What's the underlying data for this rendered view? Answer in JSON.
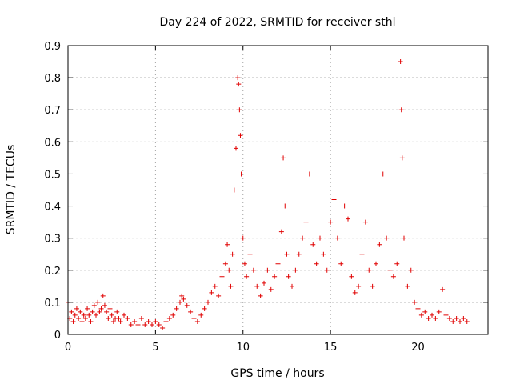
{
  "chart_data": {
    "type": "scatter",
    "title": "Day 224 of 2022, SRMTID for receiver sthl",
    "xlabel": "GPS time / hours",
    "ylabel": "SRMTID / TECUs",
    "xlim": [
      0,
      24
    ],
    "ylim": [
      0,
      0.9
    ],
    "xticks": [
      0,
      5,
      10,
      15,
      20
    ],
    "xtick_labels": [
      "0",
      "5",
      "10",
      "15",
      "20"
    ],
    "yticks": [
      0,
      0.1,
      0.2,
      0.3,
      0.4,
      0.5,
      0.6,
      0.7,
      0.8,
      0.9
    ],
    "ytick_labels": [
      "0",
      "0.1",
      "0.2",
      "0.3",
      "0.4",
      "0.5",
      "0.6",
      "0.7",
      "0.8",
      "0.9"
    ],
    "grid": true,
    "marker": "plus",
    "series": [
      {
        "name": "SRMTID",
        "color": "#e00000",
        "points": [
          [
            0.0,
            0.1
          ],
          [
            0.1,
            0.05
          ],
          [
            0.2,
            0.07
          ],
          [
            0.3,
            0.04
          ],
          [
            0.4,
            0.06
          ],
          [
            0.5,
            0.08
          ],
          [
            0.6,
            0.05
          ],
          [
            0.7,
            0.07
          ],
          [
            0.8,
            0.04
          ],
          [
            0.9,
            0.06
          ],
          [
            1.0,
            0.05
          ],
          [
            1.1,
            0.08
          ],
          [
            1.2,
            0.06
          ],
          [
            1.3,
            0.04
          ],
          [
            1.4,
            0.07
          ],
          [
            1.5,
            0.09
          ],
          [
            1.6,
            0.06
          ],
          [
            1.7,
            0.1
          ],
          [
            1.8,
            0.07
          ],
          [
            1.9,
            0.08
          ],
          [
            2.0,
            0.12
          ],
          [
            2.1,
            0.09
          ],
          [
            2.2,
            0.07
          ],
          [
            2.3,
            0.05
          ],
          [
            2.4,
            0.08
          ],
          [
            2.5,
            0.06
          ],
          [
            2.6,
            0.04
          ],
          [
            2.7,
            0.05
          ],
          [
            2.8,
            0.07
          ],
          [
            2.9,
            0.05
          ],
          [
            3.0,
            0.04
          ],
          [
            3.2,
            0.06
          ],
          [
            3.4,
            0.05
          ],
          [
            3.6,
            0.03
          ],
          [
            3.8,
            0.04
          ],
          [
            4.0,
            0.03
          ],
          [
            4.2,
            0.05
          ],
          [
            4.4,
            0.03
          ],
          [
            4.6,
            0.04
          ],
          [
            4.8,
            0.03
          ],
          [
            5.0,
            0.04
          ],
          [
            5.2,
            0.03
          ],
          [
            5.4,
            0.02
          ],
          [
            5.6,
            0.04
          ],
          [
            5.8,
            0.05
          ],
          [
            6.0,
            0.06
          ],
          [
            6.2,
            0.08
          ],
          [
            6.4,
            0.1
          ],
          [
            6.5,
            0.12
          ],
          [
            6.6,
            0.11
          ],
          [
            6.8,
            0.09
          ],
          [
            7.0,
            0.07
          ],
          [
            7.2,
            0.05
          ],
          [
            7.4,
            0.04
          ],
          [
            7.6,
            0.06
          ],
          [
            7.8,
            0.08
          ],
          [
            8.0,
            0.1
          ],
          [
            8.2,
            0.13
          ],
          [
            8.4,
            0.15
          ],
          [
            8.6,
            0.12
          ],
          [
            8.8,
            0.18
          ],
          [
            9.0,
            0.22
          ],
          [
            9.1,
            0.28
          ],
          [
            9.2,
            0.2
          ],
          [
            9.3,
            0.15
          ],
          [
            9.4,
            0.25
          ],
          [
            9.5,
            0.45
          ],
          [
            9.6,
            0.58
          ],
          [
            9.7,
            0.8
          ],
          [
            9.75,
            0.78
          ],
          [
            9.8,
            0.7
          ],
          [
            9.85,
            0.62
          ],
          [
            9.9,
            0.5
          ],
          [
            10.0,
            0.3
          ],
          [
            10.1,
            0.22
          ],
          [
            10.2,
            0.18
          ],
          [
            10.4,
            0.25
          ],
          [
            10.6,
            0.2
          ],
          [
            10.8,
            0.15
          ],
          [
            11.0,
            0.12
          ],
          [
            11.2,
            0.16
          ],
          [
            11.4,
            0.2
          ],
          [
            11.6,
            0.14
          ],
          [
            11.8,
            0.18
          ],
          [
            12.0,
            0.22
          ],
          [
            12.2,
            0.32
          ],
          [
            12.3,
            0.55
          ],
          [
            12.4,
            0.4
          ],
          [
            12.5,
            0.25
          ],
          [
            12.6,
            0.18
          ],
          [
            12.8,
            0.15
          ],
          [
            13.0,
            0.2
          ],
          [
            13.2,
            0.25
          ],
          [
            13.4,
            0.3
          ],
          [
            13.6,
            0.35
          ],
          [
            13.8,
            0.5
          ],
          [
            14.0,
            0.28
          ],
          [
            14.2,
            0.22
          ],
          [
            14.4,
            0.3
          ],
          [
            14.6,
            0.25
          ],
          [
            14.8,
            0.2
          ],
          [
            15.0,
            0.35
          ],
          [
            15.2,
            0.42
          ],
          [
            15.4,
            0.3
          ],
          [
            15.6,
            0.22
          ],
          [
            15.8,
            0.4
          ],
          [
            16.0,
            0.36
          ],
          [
            16.2,
            0.18
          ],
          [
            16.4,
            0.13
          ],
          [
            16.6,
            0.15
          ],
          [
            16.8,
            0.25
          ],
          [
            17.0,
            0.35
          ],
          [
            17.2,
            0.2
          ],
          [
            17.4,
            0.15
          ],
          [
            17.6,
            0.22
          ],
          [
            17.8,
            0.28
          ],
          [
            18.0,
            0.5
          ],
          [
            18.2,
            0.3
          ],
          [
            18.4,
            0.2
          ],
          [
            18.6,
            0.18
          ],
          [
            18.8,
            0.22
          ],
          [
            19.0,
            0.85
          ],
          [
            19.05,
            0.7
          ],
          [
            19.1,
            0.55
          ],
          [
            19.2,
            0.3
          ],
          [
            19.4,
            0.15
          ],
          [
            19.6,
            0.2
          ],
          [
            19.8,
            0.1
          ],
          [
            20.0,
            0.08
          ],
          [
            20.2,
            0.06
          ],
          [
            20.4,
            0.07
          ],
          [
            20.6,
            0.05
          ],
          [
            20.8,
            0.06
          ],
          [
            21.0,
            0.05
          ],
          [
            21.2,
            0.07
          ],
          [
            21.4,
            0.14
          ],
          [
            21.6,
            0.06
          ],
          [
            21.8,
            0.05
          ],
          [
            22.0,
            0.04
          ],
          [
            22.2,
            0.05
          ],
          [
            22.4,
            0.04
          ],
          [
            22.6,
            0.05
          ],
          [
            22.8,
            0.04
          ]
        ]
      }
    ]
  }
}
